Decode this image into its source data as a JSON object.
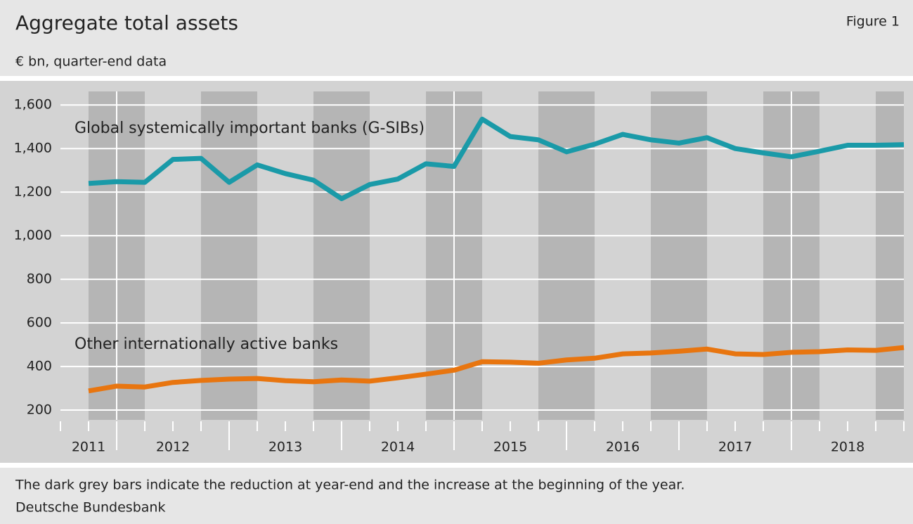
{
  "chart_data": {
    "type": "line",
    "title": "Aggregate total assets",
    "figure_label": "Figure 1",
    "subtitle": "€ bn, quarter-end data",
    "note": "The dark grey bars indicate the reduction at year-end and the increase at the beginning of the year.",
    "source": "Deutsche Bundesbank",
    "x": [
      2011.75,
      2012,
      2012.25,
      2012.5,
      2012.75,
      2013,
      2013.25,
      2013.5,
      2013.75,
      2014,
      2014.25,
      2014.5,
      2014.75,
      2015,
      2015.25,
      2015.5,
      2015.75,
      2016,
      2016.25,
      2016.5,
      2016.75,
      2017,
      2017.25,
      2017.5,
      2017.75,
      2018,
      2018.25,
      2018.5,
      2018.75,
      2019
    ],
    "series": [
      {
        "name": "Global systemically important banks (G-SIBs)",
        "color": "#1a9aa8",
        "values": [
          1240,
          1248,
          1245,
          1350,
          1355,
          1245,
          1325,
          1285,
          1255,
          1170,
          1235,
          1260,
          1330,
          1318,
          1535,
          1455,
          1440,
          1385,
          1420,
          1465,
          1440,
          1425,
          1450,
          1400,
          1380,
          1362,
          1388,
          1415,
          1415,
          1418
        ]
      },
      {
        "name": "Other internationally active banks",
        "color": "#e8750f",
        "values": [
          288,
          310,
          306,
          327,
          336,
          342,
          345,
          335,
          330,
          338,
          333,
          348,
          365,
          383,
          422,
          420,
          415,
          430,
          438,
          458,
          462,
          470,
          480,
          458,
          455,
          465,
          468,
          476,
          474,
          487
        ]
      }
    ],
    "xlim": [
      2011.5,
      2019
    ],
    "xticks": [
      {
        "value": 2011.75,
        "label": "2011"
      },
      {
        "value": 2012.5,
        "label": "2012"
      },
      {
        "value": 2013.5,
        "label": "2013"
      },
      {
        "value": 2014.5,
        "label": "2014"
      },
      {
        "value": 2015.5,
        "label": "2015"
      },
      {
        "value": 2016.5,
        "label": "2016"
      },
      {
        "value": 2017.5,
        "label": "2017"
      },
      {
        "value": 2018.5,
        "label": "2018"
      }
    ],
    "reference_lines_x": [
      2012,
      2015,
      2018
    ],
    "ylim": [
      155,
      1662
    ],
    "yticks": [
      200,
      400,
      600,
      800,
      {
        "value": 1000,
        "label": "1,000"
      },
      {
        "value": 1200,
        "label": "1,200"
      },
      {
        "value": 1400,
        "label": "1,400"
      },
      {
        "value": 1600,
        "label": "1,600"
      }
    ],
    "grid": true
  }
}
